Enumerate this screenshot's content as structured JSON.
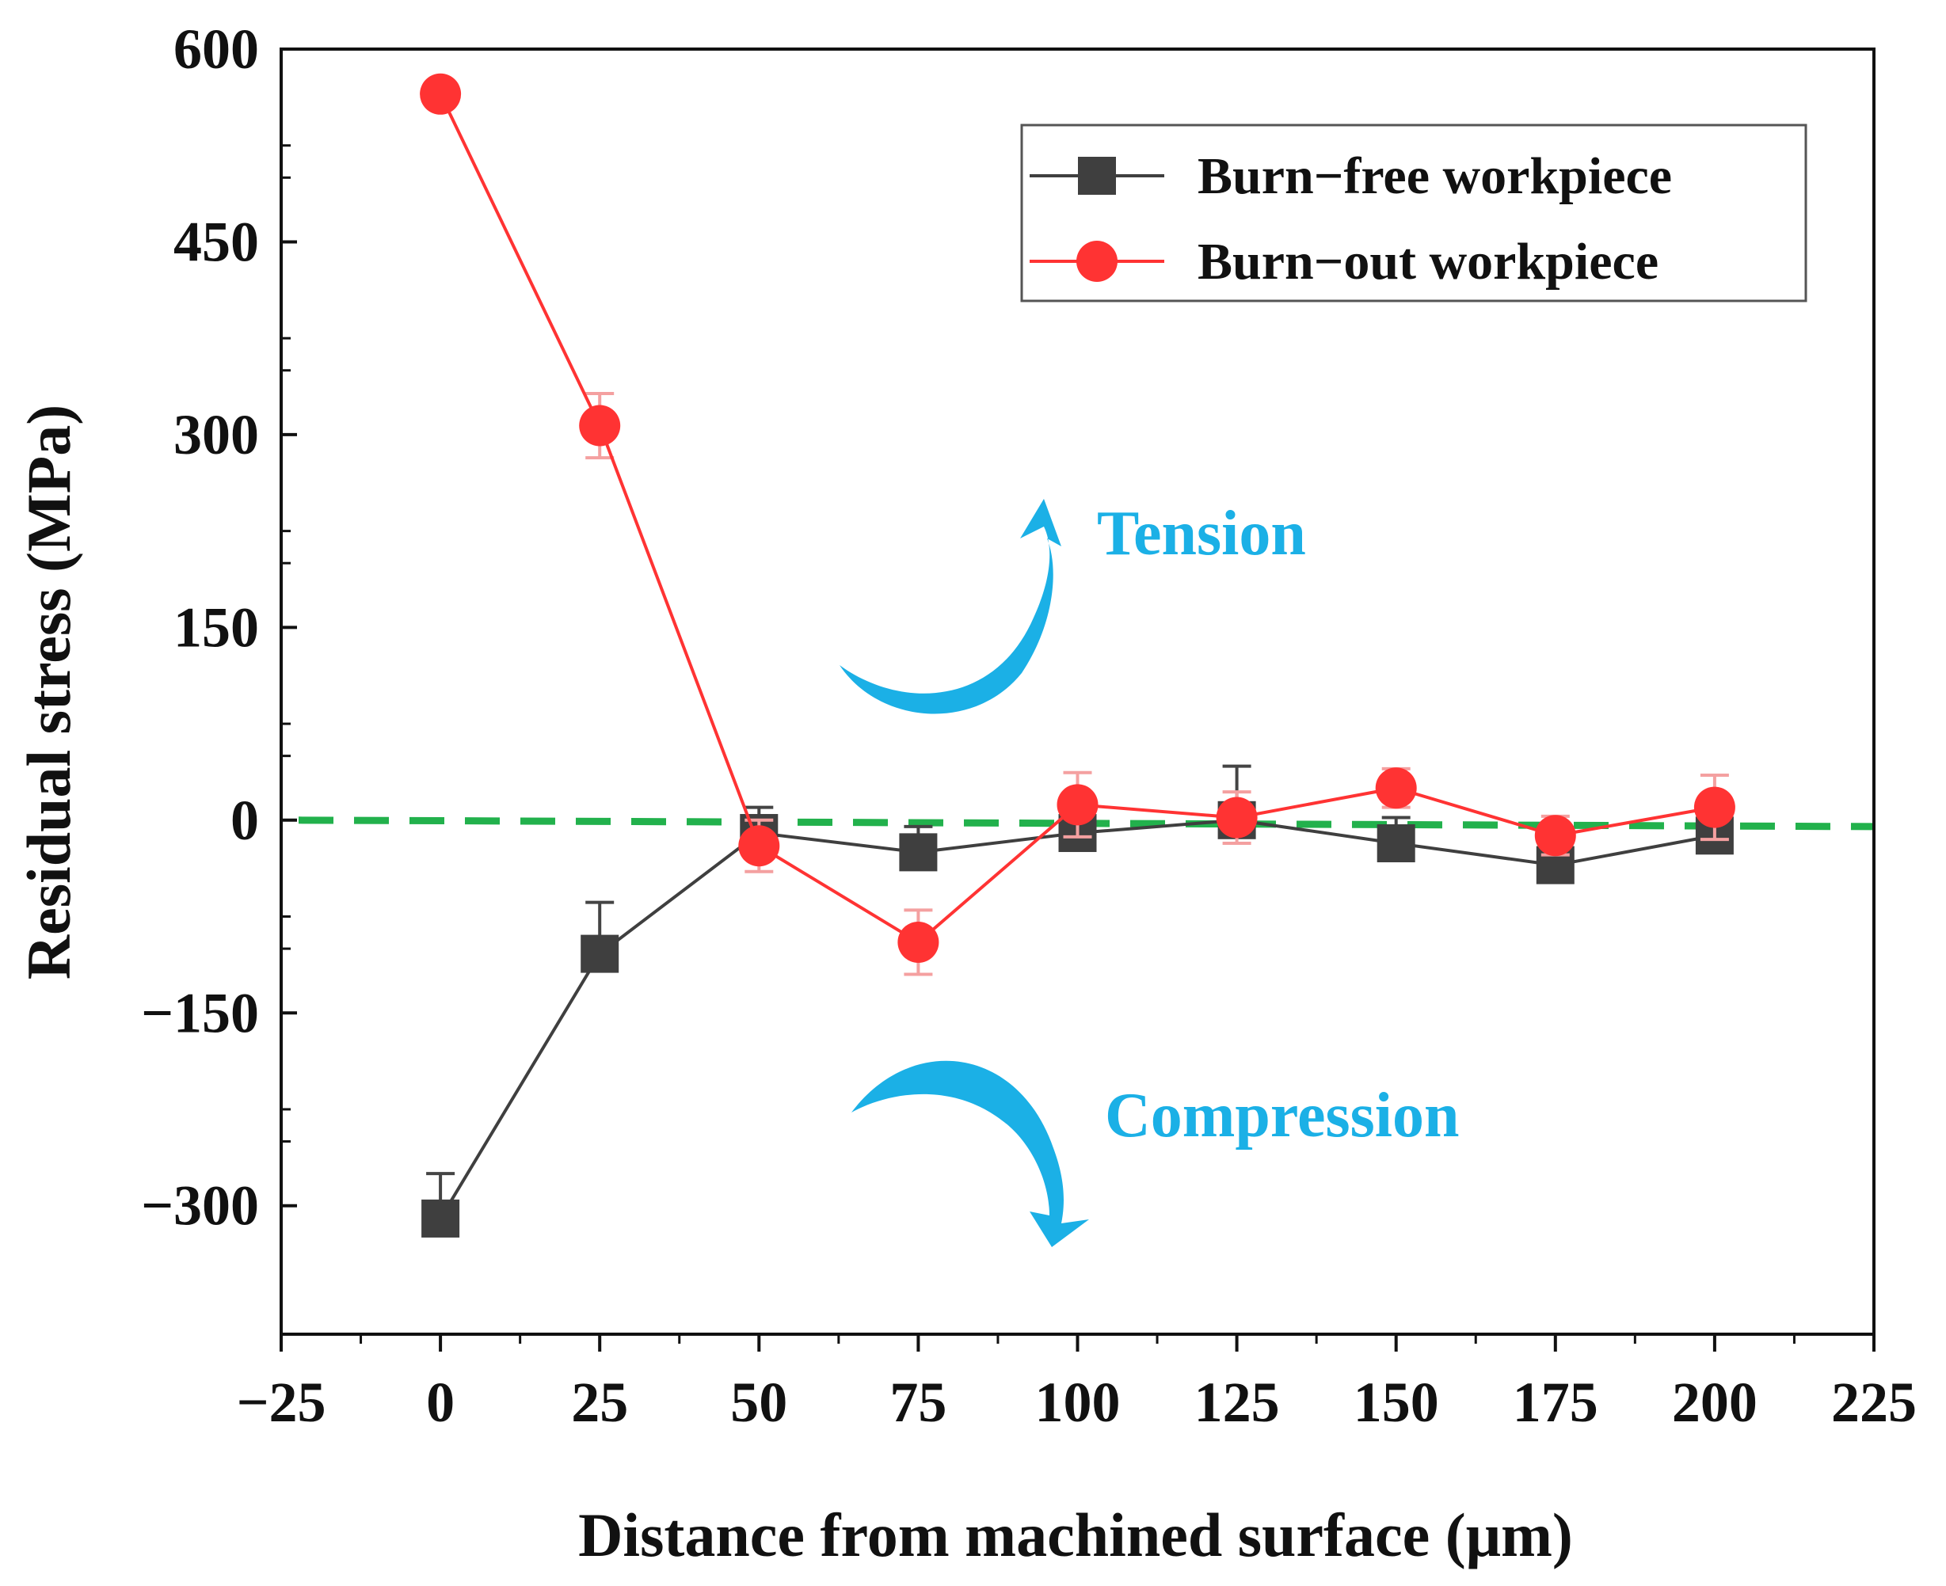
{
  "chart_data": {
    "type": "line",
    "title": "",
    "xlabel": "Distance from machined surface  (μm)",
    "ylabel": "Residual stress  (MPa)",
    "xlim": [
      -25,
      225
    ],
    "ylim": [
      -400,
      600
    ],
    "x_ticks": [
      -25,
      0,
      25,
      50,
      75,
      100,
      125,
      150,
      175,
      200,
      225
    ],
    "x_tick_labels": [
      "−25",
      "0",
      "25",
      "50",
      "75",
      "100",
      "125",
      "150",
      "175",
      "200",
      "225"
    ],
    "y_ticks": [
      -300,
      -150,
      0,
      150,
      300,
      450,
      600
    ],
    "y_tick_labels": [
      "−300",
      "−150",
      "0",
      "150",
      "300",
      "450",
      "600"
    ],
    "x": [
      0,
      25,
      50,
      75,
      100,
      125,
      150,
      175,
      200
    ],
    "series": [
      {
        "name": "Burn−free workpiece",
        "color": "#3f3f3f",
        "marker": "square",
        "values": [
          -310,
          -104,
          -10,
          -25,
          -10,
          0,
          -18,
          -35,
          -12
        ],
        "errors": [
          35,
          40,
          20,
          20,
          20,
          42,
          20,
          18,
          10
        ]
      },
      {
        "name": "Burn−out workpiece",
        "color": "#ff3333",
        "marker": "circle",
        "values": [
          565,
          307,
          -20,
          -95,
          12,
          2,
          25,
          -12,
          10
        ],
        "errors": [
          0,
          25,
          20,
          25,
          25,
          20,
          15,
          15,
          25
        ]
      }
    ],
    "reference_line": {
      "type": "dashed",
      "color": "#22b14c",
      "y_start": 0,
      "y_end": -5
    },
    "legend_position": "top-right",
    "grid": false,
    "annotations": [
      {
        "text": "Tension",
        "color": "#1bb0e6",
        "arrow": "curved-up"
      },
      {
        "text": "Compression",
        "color": "#1bb0e6",
        "arrow": "curved-down"
      }
    ]
  }
}
